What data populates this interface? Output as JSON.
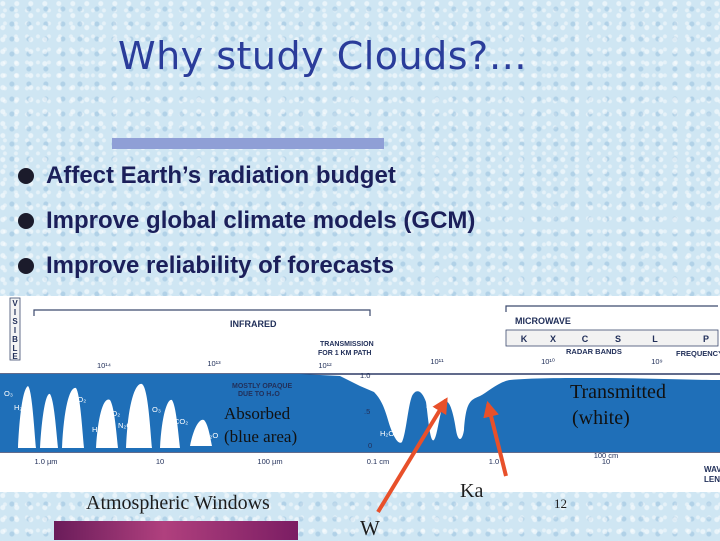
{
  "title": "Why study Clouds?…",
  "bullets": [
    "Affect Earth’s radiation budget",
    "Improve global climate models (GCM)",
    "Improve reliability of forecasts"
  ],
  "spectrum": {
    "visible_letters": [
      "V",
      "I",
      "S",
      "I",
      "B",
      "L",
      "E"
    ],
    "infrared_label": "INFRARED",
    "microwave_label": "MICROWAVE",
    "transmission_label_1": "TRANSMISSION",
    "transmission_label_2": "FOR 1 KM PATH",
    "radar_bands": [
      "K",
      "X",
      "C",
      "S",
      "L",
      "P"
    ],
    "radar_bands_label": "RADAR BANDS",
    "frequency_label": "FREQUENCY",
    "frequency_ticks": [
      "10¹⁴",
      "10¹³",
      "10¹²",
      "10¹¹",
      "10¹⁰",
      "10⁹"
    ],
    "opaque_label_1": "MOSTLY OPAQUE",
    "opaque_label_2": "DUE TO H₂O",
    "wavelength_label_1": "WAV",
    "wavelength_label_2": "LENG",
    "wavelength_ticks": [
      "1.0 µm",
      "10",
      "100 µm",
      "0.1 cm",
      "1.0",
      "10",
      "100 cm"
    ],
    "transmission_ticks": [
      "1.0",
      ".5",
      "0"
    ],
    "molecules": [
      "O₃",
      "H₂O",
      "CO₂",
      "H₂O",
      "H₂O",
      "CO₂",
      "N₂O",
      "H₂O",
      "O₃",
      "CO₂",
      "O₂",
      "H₂O",
      "O₂",
      "H₂O",
      "H₂O"
    ],
    "absorbed_label_1": "Absorbed",
    "absorbed_label_2": "(blue area)",
    "transmitted_label_1": "Transmitted",
    "transmitted_label_2": "(white)"
  },
  "annotations": {
    "atmospheric_windows": "Atmospheric Windows",
    "ka": "Ka",
    "w": "W",
    "page_number": "12"
  },
  "colors": {
    "title": "#2a3c9a",
    "absorbed_fill": "#1f6fb8",
    "arrow": "#e8502a",
    "footer_bar": "#9c3473"
  }
}
